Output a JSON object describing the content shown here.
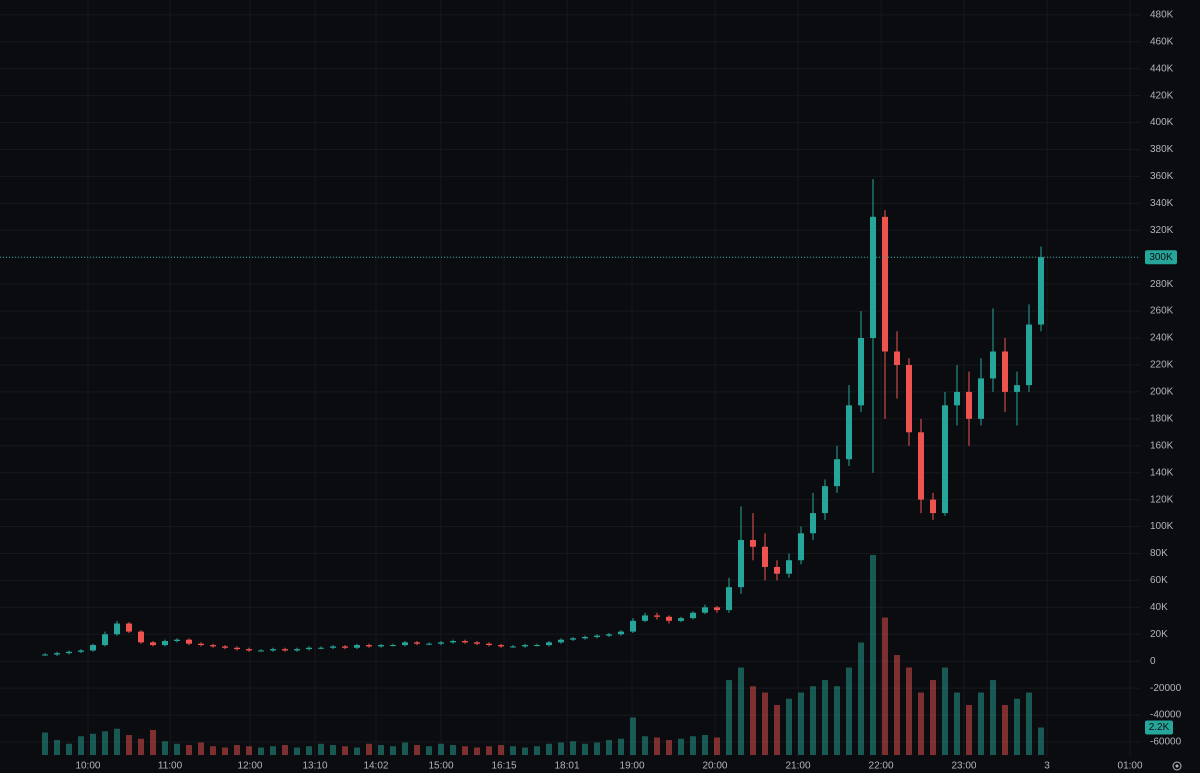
{
  "chart_data": {
    "type": "candlestick",
    "up_color": "#26a69a",
    "down_color": "#ef5350",
    "grid": true,
    "xlim": [
      -3.75,
      91.25
    ],
    "xticks": [
      {
        "value": 3.58,
        "label": "10:00"
      },
      {
        "value": 10.42,
        "label": "11:00"
      },
      {
        "value": 17.08,
        "label": "12:00"
      },
      {
        "value": 22.5,
        "label": "13:10"
      },
      {
        "value": 27.58,
        "label": "14:02"
      },
      {
        "value": 33,
        "label": "15:00"
      },
      {
        "value": 38.25,
        "label": "16:15"
      },
      {
        "value": 43.5,
        "label": "18:01"
      },
      {
        "value": 48.92,
        "label": "19:00"
      },
      {
        "value": 55.83,
        "label": "20:00"
      },
      {
        "value": 62.75,
        "label": "21:00"
      },
      {
        "value": 69.67,
        "label": "22:00"
      },
      {
        "value": 76.58,
        "label": "23:00"
      },
      {
        "value": 83.5,
        "label": "3"
      },
      {
        "value": 90.42,
        "label": "01:00"
      }
    ],
    "ylim": [
      -83000,
      491000
    ],
    "yticks": [
      -60000,
      -40000,
      -20000,
      0,
      {
        "value": 20000,
        "label": "20K"
      },
      {
        "value": 40000,
        "label": "40K"
      },
      {
        "value": 60000,
        "label": "60K"
      },
      {
        "value": 80000,
        "label": "80K"
      },
      {
        "value": 100000,
        "label": "100K"
      },
      {
        "value": 120000,
        "label": "120K"
      },
      {
        "value": 140000,
        "label": "140K"
      },
      {
        "value": 160000,
        "label": "160K"
      },
      {
        "value": 180000,
        "label": "180K"
      },
      {
        "value": 200000,
        "label": "200K"
      },
      {
        "value": 220000,
        "label": "220K"
      },
      {
        "value": 240000,
        "label": "240K"
      },
      {
        "value": 260000,
        "label": "260K"
      },
      {
        "value": 280000,
        "label": "280K"
      },
      {
        "value": 300000,
        "label": "300K"
      },
      {
        "value": 320000,
        "label": "320K"
      },
      {
        "value": 340000,
        "label": "340K"
      },
      {
        "value": 360000,
        "label": "360K"
      },
      {
        "value": 380000,
        "label": "380K"
      },
      {
        "value": 400000,
        "label": "400K"
      },
      {
        "value": 420000,
        "label": "420K"
      },
      {
        "value": 440000,
        "label": "440K"
      },
      {
        "value": 460000,
        "label": "460K"
      },
      {
        "value": 480000,
        "label": "480K"
      }
    ],
    "last_price": {
      "value": 300000,
      "label": "300K"
    },
    "last_volume": {
      "value": 2200,
      "label": "2.2K"
    },
    "volume_lim": [
      0,
      16000
    ],
    "open": [
      4500,
      5000,
      6000,
      7000,
      8000,
      12000,
      20000,
      28000,
      22000,
      14000,
      12000,
      15000,
      16000,
      13000,
      12000,
      11000,
      10000,
      9000,
      8000,
      8000,
      9000,
      8000,
      9000,
      10000,
      10000,
      11000,
      10000,
      12000,
      11000,
      12000,
      12000,
      14000,
      13000,
      13000,
      14000,
      15000,
      14000,
      13000,
      12000,
      11000,
      11000,
      12000,
      12000,
      14000,
      16000,
      17000,
      18000,
      19000,
      20000,
      22000,
      30000,
      34000,
      33000,
      30000,
      32000,
      36000,
      40000,
      38000,
      55000,
      90000,
      85000,
      70000,
      65000,
      75000,
      95000,
      110000,
      130000,
      150000,
      190000,
      240000,
      330000,
      230000,
      220000,
      170000,
      120000,
      110000,
      190000,
      200000,
      180000,
      210000,
      230000,
      200000,
      205000,
      250000
    ],
    "high": [
      6000,
      7000,
      8000,
      9000,
      13000,
      22000,
      30000,
      29000,
      23000,
      15000,
      16000,
      17000,
      17000,
      14000,
      13000,
      12000,
      11000,
      10000,
      9000,
      10000,
      10000,
      10000,
      11000,
      11000,
      12000,
      12000,
      13000,
      13000,
      13000,
      13000,
      15000,
      15000,
      14000,
      15000,
      16000,
      16000,
      15000,
      14000,
      13000,
      12000,
      13000,
      13000,
      15000,
      17000,
      18000,
      19000,
      20000,
      21000,
      23000,
      32000,
      36000,
      36000,
      34000,
      33000,
      37000,
      42000,
      41000,
      62000,
      115000,
      110000,
      95000,
      75000,
      80000,
      100000,
      125000,
      135000,
      160000,
      205000,
      260000,
      358000,
      335000,
      245000,
      225000,
      180000,
      125000,
      200000,
      220000,
      215000,
      225000,
      262000,
      240000,
      215000,
      265000,
      308000
    ],
    "low": [
      4000,
      4000,
      5000,
      6000,
      7000,
      11000,
      19000,
      21000,
      13000,
      11000,
      11000,
      14000,
      12000,
      11000,
      10000,
      9000,
      8000,
      7000,
      7000,
      7000,
      7000,
      7000,
      8000,
      9000,
      9000,
      9000,
      9000,
      10000,
      10000,
      11000,
      11000,
      12000,
      12000,
      12000,
      13000,
      13000,
      12000,
      11000,
      10000,
      10000,
      10000,
      11000,
      11000,
      13000,
      15000,
      16000,
      17000,
      18000,
      19000,
      21000,
      29000,
      31000,
      28000,
      29000,
      31000,
      35000,
      36000,
      36000,
      50000,
      75000,
      60000,
      60000,
      62000,
      72000,
      90000,
      105000,
      125000,
      145000,
      185000,
      140000,
      180000,
      195000,
      160000,
      110000,
      105000,
      108000,
      175000,
      160000,
      175000,
      200000,
      185000,
      175000,
      200000,
      245000
    ],
    "close": [
      5000,
      6000,
      7000,
      8000,
      12000,
      20000,
      28000,
      22000,
      14000,
      12000,
      15000,
      16000,
      13000,
      12000,
      11000,
      10000,
      9000,
      8000,
      8000,
      9000,
      8000,
      9000,
      10000,
      10000,
      11000,
      10000,
      12000,
      11000,
      12000,
      12000,
      14000,
      13000,
      13000,
      14000,
      15000,
      14000,
      13000,
      12000,
      11000,
      11000,
      12000,
      12000,
      14000,
      16000,
      17000,
      18000,
      19000,
      20000,
      22000,
      30000,
      34000,
      33000,
      30000,
      32000,
      36000,
      40000,
      38000,
      55000,
      90000,
      85000,
      70000,
      65000,
      75000,
      95000,
      110000,
      130000,
      150000,
      190000,
      240000,
      330000,
      230000,
      220000,
      170000,
      120000,
      110000,
      190000,
      200000,
      180000,
      210000,
      230000,
      200000,
      205000,
      250000,
      300000
    ],
    "volume": [
      1800,
      1200,
      900,
      1500,
      1700,
      1900,
      2100,
      1600,
      1300,
      2000,
      1100,
      900,
      800,
      1000,
      700,
      600,
      800,
      700,
      600,
      700,
      800,
      600,
      700,
      900,
      800,
      700,
      600,
      900,
      800,
      700,
      1000,
      800,
      700,
      900,
      800,
      700,
      600,
      700,
      800,
      700,
      600,
      700,
      900,
      1000,
      1100,
      900,
      1000,
      1200,
      1300,
      3000,
      1500,
      1400,
      1200,
      1300,
      1500,
      1600,
      1400,
      6000,
      7000,
      5500,
      5000,
      4000,
      4500,
      5000,
      5500,
      6000,
      5500,
      7000,
      9000,
      16000,
      11000,
      8000,
      7000,
      5000,
      6000,
      7000,
      5000,
      4000,
      5000,
      6000,
      4000,
      4500,
      5000,
      2200
    ]
  }
}
